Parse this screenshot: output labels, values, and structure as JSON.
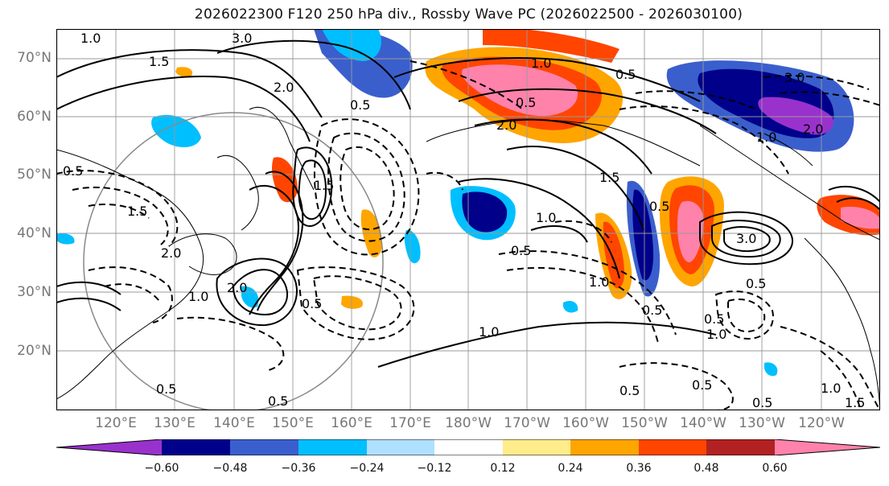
{
  "title": "2026022300 F120 250 hPa div., Rossby Wave PC (2026022500 - 2026030100)",
  "lat_labels": [
    "70°N",
    "60°N",
    "50°N",
    "40°N",
    "30°N",
    "20°N"
  ],
  "lon_labels": [
    "120°E",
    "130°E",
    "140°E",
    "150°E",
    "160°E",
    "170°E",
    "180°W",
    "170°W",
    "160°W",
    "150°W",
    "140°W",
    "130°W",
    "120°W"
  ],
  "colorbar": {
    "ticks": [
      "−0.60",
      "−0.48",
      "−0.36",
      "−0.24",
      "−0.12",
      "0.12",
      "0.24",
      "0.36",
      "0.48",
      "0.60"
    ],
    "colors": [
      "#9932cc",
      "#00008b",
      "#3a5fcd",
      "#00bfff",
      "#b0e0ff",
      "#ffffff",
      "#ffec8b",
      "#ffa500",
      "#ff4500",
      "#b22222",
      "#ff82ab"
    ]
  },
  "contour_labels": [
    "1.0",
    "3.0",
    "1.5",
    "2.0",
    "0.5",
    "1.0",
    "2.0",
    "0.5",
    "0.5",
    "3.0",
    "2.0",
    "1.0",
    "1.5",
    "1.0",
    "0.5",
    "1.0",
    "0.5",
    "3.0",
    "0.5",
    "0.5",
    "0.5",
    "1.0",
    "0.5",
    "0.5",
    "1.5",
    "1.0",
    "1.0",
    "0.5",
    "1.5",
    "2.0",
    "1.5",
    "1.0",
    "0.5",
    "2.0",
    "0.5",
    "0.5",
    "0.5"
  ]
}
